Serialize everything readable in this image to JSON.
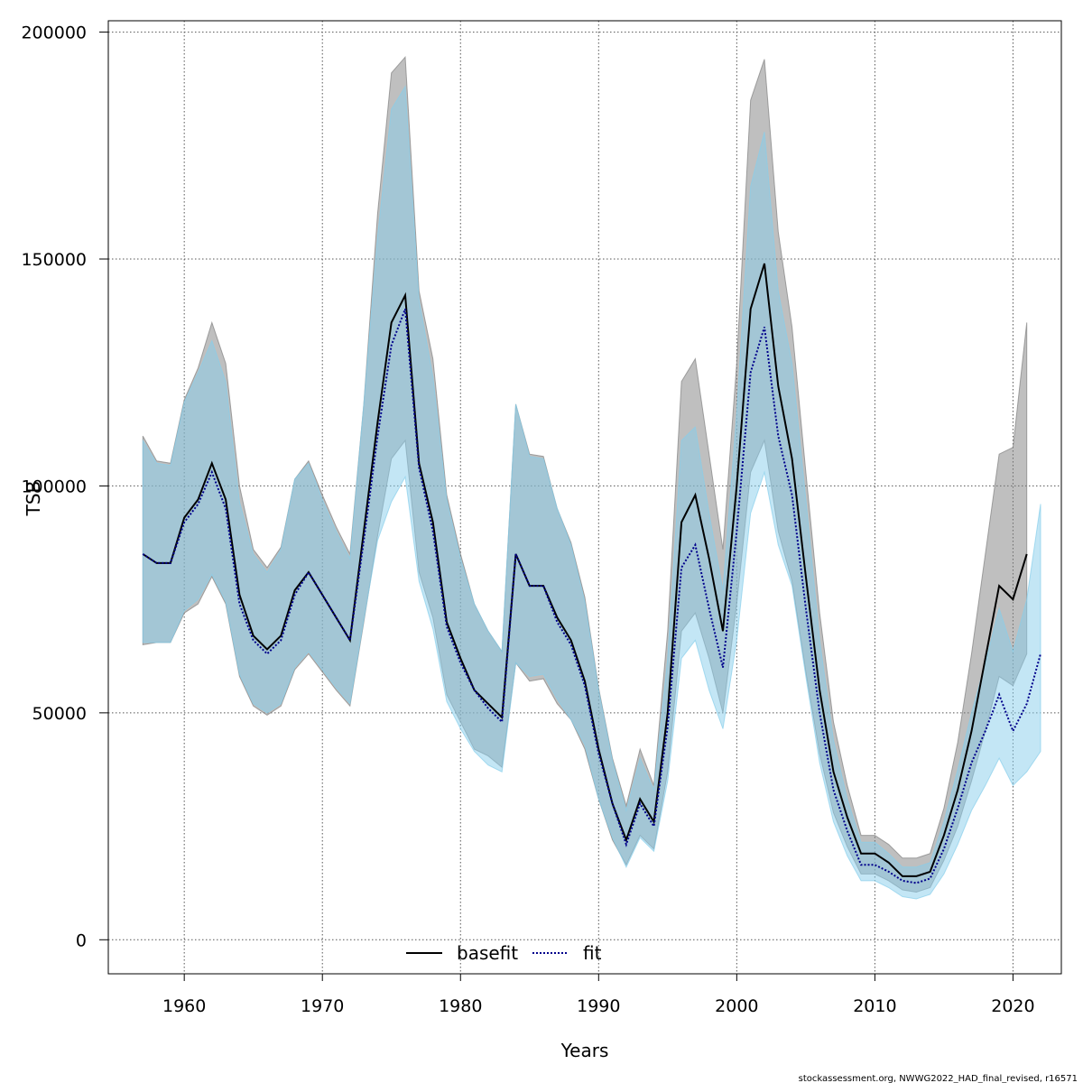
{
  "chart_data": {
    "type": "line",
    "title": "",
    "xlabel": "Years",
    "ylabel": "TSB",
    "xlim": [
      1954.5,
      2023.5
    ],
    "ylim": [
      -7500,
      202500
    ],
    "x_ticks": [
      1960,
      1970,
      1980,
      1990,
      2000,
      2010,
      2020
    ],
    "y_ticks": [
      0,
      50000,
      100000,
      150000,
      200000
    ],
    "grid": true,
    "legend_position": "bottom-center",
    "credit": "stockassessment.org, NWWG2022_HAD_final_revised, r16571",
    "series": [
      {
        "name": "basefit",
        "color": "#000000",
        "band_color": "#808080",
        "line_style": "solid",
        "x": [
          1957,
          1958,
          1959,
          1960,
          1961,
          1962,
          1963,
          1964,
          1965,
          1966,
          1967,
          1968,
          1969,
          1970,
          1971,
          1972,
          1973,
          1974,
          1975,
          1976,
          1977,
          1978,
          1979,
          1980,
          1981,
          1982,
          1983,
          1984,
          1985,
          1986,
          1987,
          1988,
          1989,
          1990,
          1991,
          1992,
          1993,
          1994,
          1995,
          1996,
          1997,
          1998,
          1999,
          2000,
          2001,
          2002,
          2003,
          2004,
          2005,
          2006,
          2007,
          2008,
          2009,
          2010,
          2011,
          2012,
          2013,
          2014,
          2015,
          2016,
          2017,
          2018,
          2019,
          2020,
          2021
        ],
        "values": [
          85000,
          83000,
          83000,
          93000,
          97000,
          105000,
          97000,
          76000,
          67000,
          64000,
          67000,
          77000,
          81000,
          76000,
          71000,
          66000,
          90000,
          114000,
          136000,
          142000,
          105000,
          92000,
          70000,
          62000,
          55000,
          52000,
          49000,
          85000,
          78000,
          78000,
          71000,
          66000,
          57000,
          42000,
          30000,
          22000,
          31000,
          26000,
          50000,
          92000,
          98000,
          84000,
          68000,
          100000,
          139000,
          149000,
          122000,
          106000,
          80000,
          55000,
          37000,
          27000,
          19000,
          19000,
          17000,
          14000,
          14000,
          15000,
          23000,
          33000,
          46000,
          62000,
          78000,
          75000,
          85000
        ],
        "lower": [
          65000,
          65500,
          65500,
          72000,
          74000,
          80000,
          74000,
          58000,
          51500,
          49500,
          51500,
          59500,
          63000,
          59000,
          55000,
          51500,
          70000,
          89000,
          106000,
          110000,
          81000,
          71000,
          54000,
          48000,
          42000,
          40500,
          38000,
          61000,
          57000,
          57500,
          52000,
          48500,
          42000,
          31000,
          22000,
          16500,
          23000,
          20000,
          37000,
          68000,
          72000,
          62000,
          50000,
          74000,
          103000,
          110000,
          90000,
          79000,
          59000,
          41000,
          28000,
          20500,
          14500,
          14500,
          13000,
          11000,
          10500,
          11500,
          17500,
          25000,
          35000,
          46000,
          58000,
          56000,
          63000
        ],
        "upper": [
          111000,
          105500,
          105000,
          119000,
          126000,
          136000,
          127000,
          100000,
          86000,
          82000,
          86500,
          101500,
          105500,
          98000,
          91000,
          85000,
          118000,
          160000,
          191000,
          194500,
          143000,
          128000,
          98000,
          85000,
          74000,
          68000,
          63500,
          118000,
          107000,
          106500,
          95000,
          87500,
          75500,
          55500,
          40000,
          29500,
          42000,
          34000,
          68000,
          123000,
          128000,
          107000,
          86000,
          127000,
          185000,
          194000,
          156000,
          135000,
          103000,
          72000,
          48000,
          34000,
          23000,
          23000,
          21000,
          18000,
          18000,
          19000,
          29000,
          43500,
          63000,
          85000,
          107000,
          108500,
          136000
        ]
      },
      {
        "name": "fit",
        "color": "#00008B",
        "band_color": "#87CEEB",
        "line_style": "dotted",
        "x": [
          1957,
          1958,
          1959,
          1960,
          1961,
          1962,
          1963,
          1964,
          1965,
          1966,
          1967,
          1968,
          1969,
          1970,
          1971,
          1972,
          1973,
          1974,
          1975,
          1976,
          1977,
          1978,
          1979,
          1980,
          1981,
          1982,
          1983,
          1984,
          1985,
          1986,
          1987,
          1988,
          1989,
          1990,
          1991,
          1992,
          1993,
          1994,
          1995,
          1996,
          1997,
          1998,
          1999,
          2000,
          2001,
          2002,
          2003,
          2004,
          2005,
          2006,
          2007,
          2008,
          2009,
          2010,
          2011,
          2012,
          2013,
          2014,
          2015,
          2016,
          2017,
          2018,
          2019,
          2020,
          2021,
          2022
        ],
        "values": [
          85000,
          83000,
          83000,
          92000,
          96000,
          103000,
          95000,
          74000,
          66000,
          63000,
          66000,
          76000,
          81000,
          76000,
          71000,
          66000,
          88000,
          111000,
          131000,
          139000,
          104000,
          90000,
          69000,
          61000,
          55000,
          51000,
          48000,
          85000,
          78000,
          78000,
          70000,
          65000,
          56000,
          41000,
          30000,
          21000,
          30000,
          25000,
          47000,
          82000,
          87000,
          73000,
          60000,
          90000,
          125000,
          135000,
          111000,
          98000,
          73000,
          50000,
          33000,
          24000,
          16500,
          16500,
          15000,
          13000,
          12500,
          13500,
          20000,
          29000,
          39000,
          46000,
          54000,
          46000,
          52000,
          63000
        ],
        "lower": [
          65500,
          65500,
          65500,
          72500,
          75000,
          80500,
          74500,
          58500,
          52000,
          50000,
          52000,
          60000,
          63500,
          59500,
          55500,
          52000,
          70500,
          88000,
          96500,
          102000,
          79000,
          68500,
          52500,
          46500,
          41500,
          38500,
          37000,
          61000,
          58000,
          58500,
          53000,
          48500,
          43000,
          31000,
          22500,
          16000,
          22500,
          19500,
          35000,
          62000,
          66000,
          55000,
          46500,
          66000,
          94000,
          103000,
          87000,
          78000,
          58000,
          39000,
          26000,
          18500,
          13000,
          13000,
          11500,
          9500,
          9000,
          10000,
          14500,
          21000,
          28500,
          34000,
          40000,
          34000,
          37000,
          41500
        ],
        "upper": [
          110000,
          105000,
          104500,
          118500,
          125000,
          132000,
          123000,
          96500,
          85000,
          81000,
          86000,
          101500,
          105000,
          97000,
          90000,
          84000,
          118000,
          155000,
          183000,
          188000,
          141000,
          124000,
          97000,
          84000,
          74000,
          68000,
          63500,
          118000,
          106500,
          106000,
          95000,
          87000,
          74500,
          55000,
          39500,
          28500,
          40000,
          33000,
          62000,
          110000,
          113000,
          94000,
          77000,
          116000,
          166000,
          178000,
          143000,
          127000,
          97000,
          66000,
          44000,
          31000,
          21500,
          21500,
          19000,
          16000,
          16000,
          17000,
          26000,
          37500,
          50000,
          61000,
          73000,
          63500,
          75000,
          96000
        ]
      }
    ]
  }
}
